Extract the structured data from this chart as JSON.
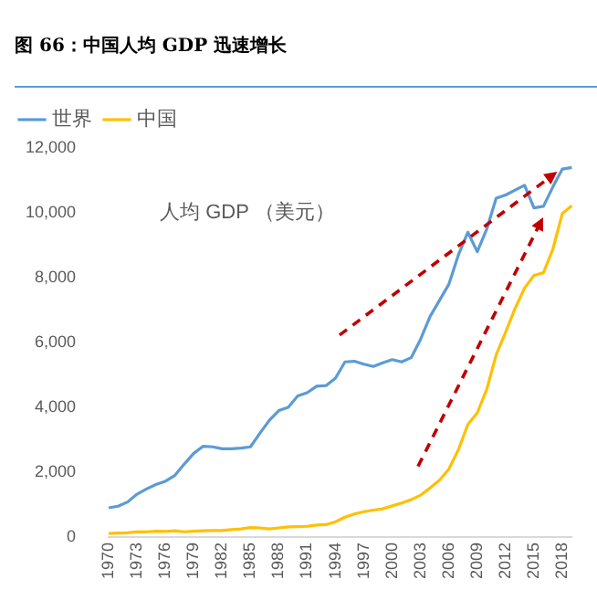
{
  "chart_data": {
    "type": "line",
    "title": "图 66：中国人均 GDP 迅速增长",
    "categories": [
      "1970",
      null,
      null,
      "1973",
      null,
      null,
      "1976",
      null,
      null,
      "1979",
      null,
      null,
      "1982",
      null,
      null,
      "1985",
      null,
      null,
      "1988",
      null,
      null,
      "1991",
      null,
      null,
      "1994",
      null,
      null,
      "1997",
      null,
      null,
      "2000",
      null,
      null,
      "2003",
      null,
      null,
      "2006",
      null,
      null,
      "2009",
      null,
      null,
      "2012",
      null,
      null,
      "2015",
      null,
      null,
      "2018",
      null
    ],
    "series": [
      {
        "name": "世界",
        "color": "#5b9bd5",
        "values": [
          900,
          950,
          1080,
          1320,
          1480,
          1620,
          1720,
          1900,
          2250,
          2580,
          2800,
          2780,
          2720,
          2720,
          2740,
          2780,
          3200,
          3600,
          3900,
          4000,
          4350,
          4450,
          4650,
          4670,
          4900,
          5400,
          5420,
          5330,
          5260,
          5370,
          5470,
          5400,
          5530,
          6100,
          6800,
          7300,
          7800,
          8700,
          9400,
          8800,
          9500,
          10450,
          10550,
          10700,
          10850,
          10150,
          10200,
          10800,
          11350,
          11400
        ]
      },
      {
        "name": "中国",
        "color": "#ffc000",
        "values": [
          110,
          120,
          130,
          160,
          160,
          180,
          170,
          190,
          160,
          180,
          190,
          200,
          200,
          230,
          250,
          290,
          280,
          250,
          280,
          310,
          320,
          330,
          370,
          380,
          470,
          610,
          710,
          780,
          830,
          870,
          960,
          1050,
          1150,
          1290,
          1510,
          1750,
          2100,
          2690,
          3470,
          3830,
          4550,
          5620,
          6320,
          7050,
          7680,
          8070,
          8150,
          8880,
          9980,
          10220
        ]
      }
    ],
    "ylim": [
      0,
      12000
    ],
    "yticks": [
      0,
      {
        "value": 2000,
        "label": "2,000"
      },
      {
        "value": 4000,
        "label": "4,000"
      },
      {
        "value": 6000,
        "label": "6,000"
      },
      {
        "value": 8000,
        "label": "8,000"
      },
      {
        "value": 10000,
        "label": "10,000"
      },
      {
        "value": 12000,
        "label": "12,000"
      }
    ],
    "annotations": [
      "人均 GDP （美元）"
    ],
    "legend": "top",
    "grid": false,
    "marker": "none",
    "line_style": "solid"
  }
}
